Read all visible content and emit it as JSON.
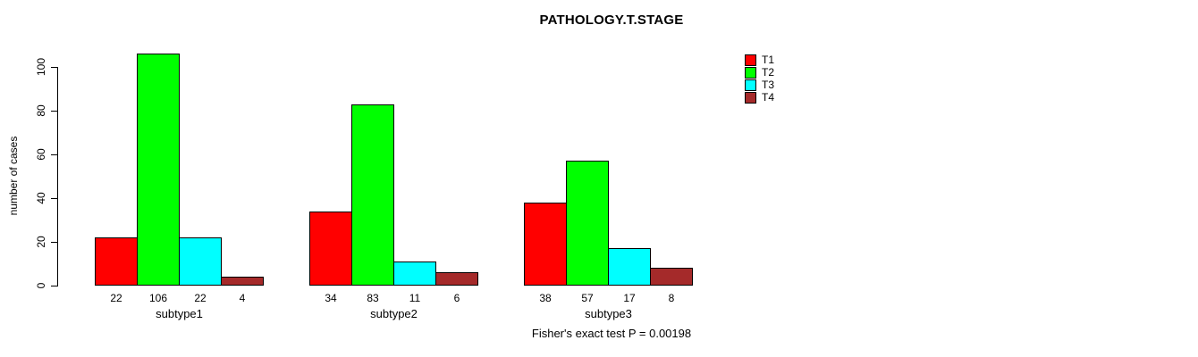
{
  "chart_data": {
    "type": "bar",
    "title": "PATHOLOGY.T.STAGE",
    "xlabel": "",
    "ylabel": "number of cases",
    "categories": [
      "subtype1",
      "subtype2",
      "subtype3"
    ],
    "series": [
      {
        "name": "T1",
        "color": "#ff0000",
        "values": [
          22,
          34,
          38
        ]
      },
      {
        "name": "T2",
        "color": "#00ff00",
        "values": [
          106,
          83,
          57
        ]
      },
      {
        "name": "T3",
        "color": "#00ffff",
        "values": [
          22,
          11,
          17
        ]
      },
      {
        "name": "T4",
        "color": "#a52a2a",
        "values": [
          4,
          6,
          8
        ]
      }
    ],
    "bar_value_labels": [
      [
        "22",
        "106",
        "22",
        "4"
      ],
      [
        "34",
        "83",
        "11",
        "6"
      ],
      [
        "38",
        "57",
        "17",
        "8"
      ]
    ],
    "yticks": [
      0,
      20,
      40,
      60,
      80,
      100
    ],
    "ylim": [
      0,
      110
    ],
    "grid": false,
    "legend_position": "right-outside",
    "annotation": "Fisher's exact test P = 0.00198",
    "colors": {
      "axis": "#000000",
      "background": "#ffffff",
      "bar_border": "#000000"
    }
  }
}
